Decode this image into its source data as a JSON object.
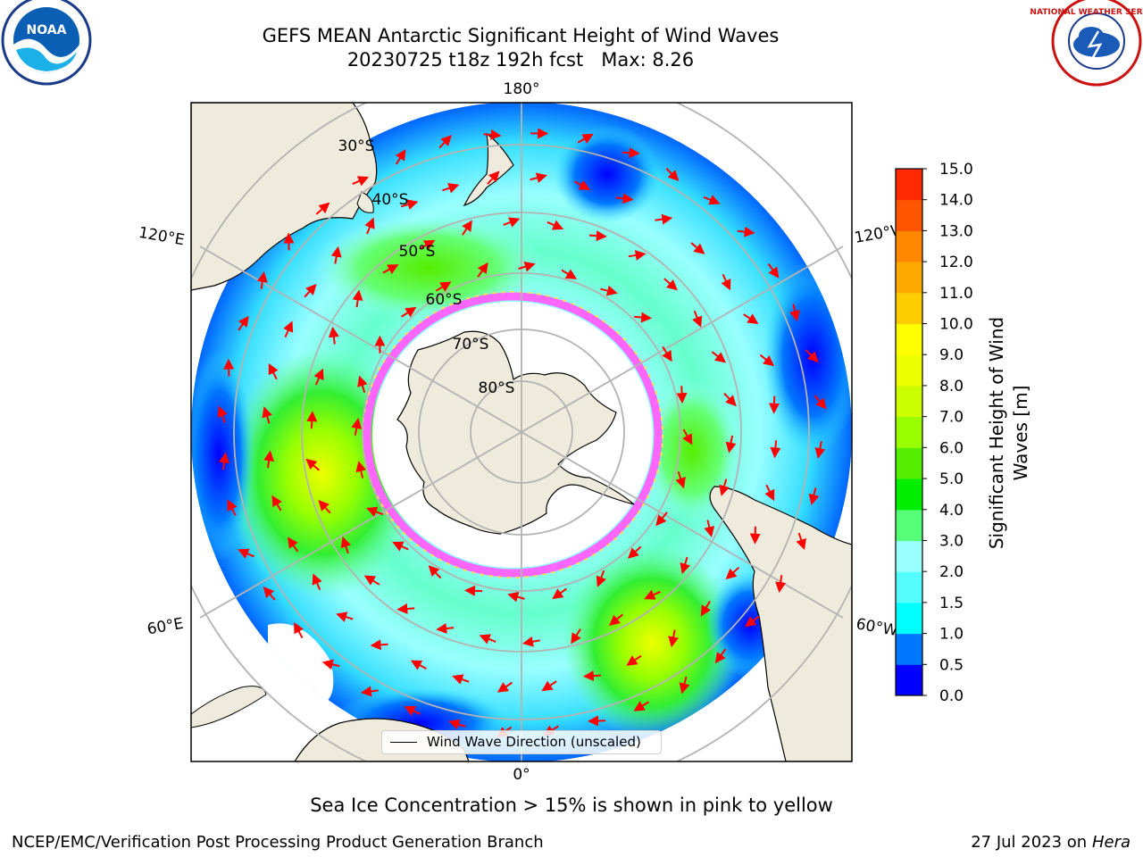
{
  "title": {
    "line1": "GEFS MEAN Antarctic Significant Height of Wind Waves",
    "line2": "20230725 t18z 192h fcst   Max: 8.26"
  },
  "map": {
    "projection": "south-polar-stereographic",
    "longitude_labels": [
      "180°",
      "120°E",
      "120°W",
      "60°E",
      "60°W",
      "0°"
    ],
    "latitude_labels": [
      "30°S",
      "40°S",
      "50°S",
      "60°S",
      "70°S",
      "80°S"
    ],
    "land_color": "#efebdc",
    "ice_edge_colors": [
      "#ff66ff",
      "#ffff66"
    ],
    "arrow_color": "#ff0000"
  },
  "legend": {
    "label": "Wind Wave Direction (unscaled)"
  },
  "colorbar": {
    "label": "Significant Height of Wind Waves [m]",
    "label_line1": "Significant Height of Wind",
    "label_line2": "Waves [m]",
    "ticks": [
      "15.0",
      "14.0",
      "13.0",
      "12.0",
      "11.0",
      "10.0",
      "9.0",
      "8.0",
      "7.0",
      "6.0",
      "5.0",
      "4.0",
      "3.0",
      "2.0",
      "1.5",
      "1.0",
      "0.5",
      "0.0"
    ],
    "colors": [
      "#0000ff",
      "#0077ff",
      "#00ffff",
      "#55ffff",
      "#99ffff",
      "#55ff77",
      "#00ee00",
      "#55ee00",
      "#99ff00",
      "#ccff00",
      "#eeff00",
      "#ffff00",
      "#ffcc00",
      "#ffaa00",
      "#ff8800",
      "#ff5500",
      "#ff2a00"
    ]
  },
  "caption": "Sea Ice Concentration > 15% is shown in pink to yellow",
  "footer": {
    "left": "NCEP/EMC/Verification Post Processing Product Generation Branch",
    "right_date": "27 Jul 2023 on ",
    "right_host": "Hera"
  },
  "logos": {
    "noaa": "NOAA",
    "nws": "NATIONAL WEATHER SERVICE"
  }
}
